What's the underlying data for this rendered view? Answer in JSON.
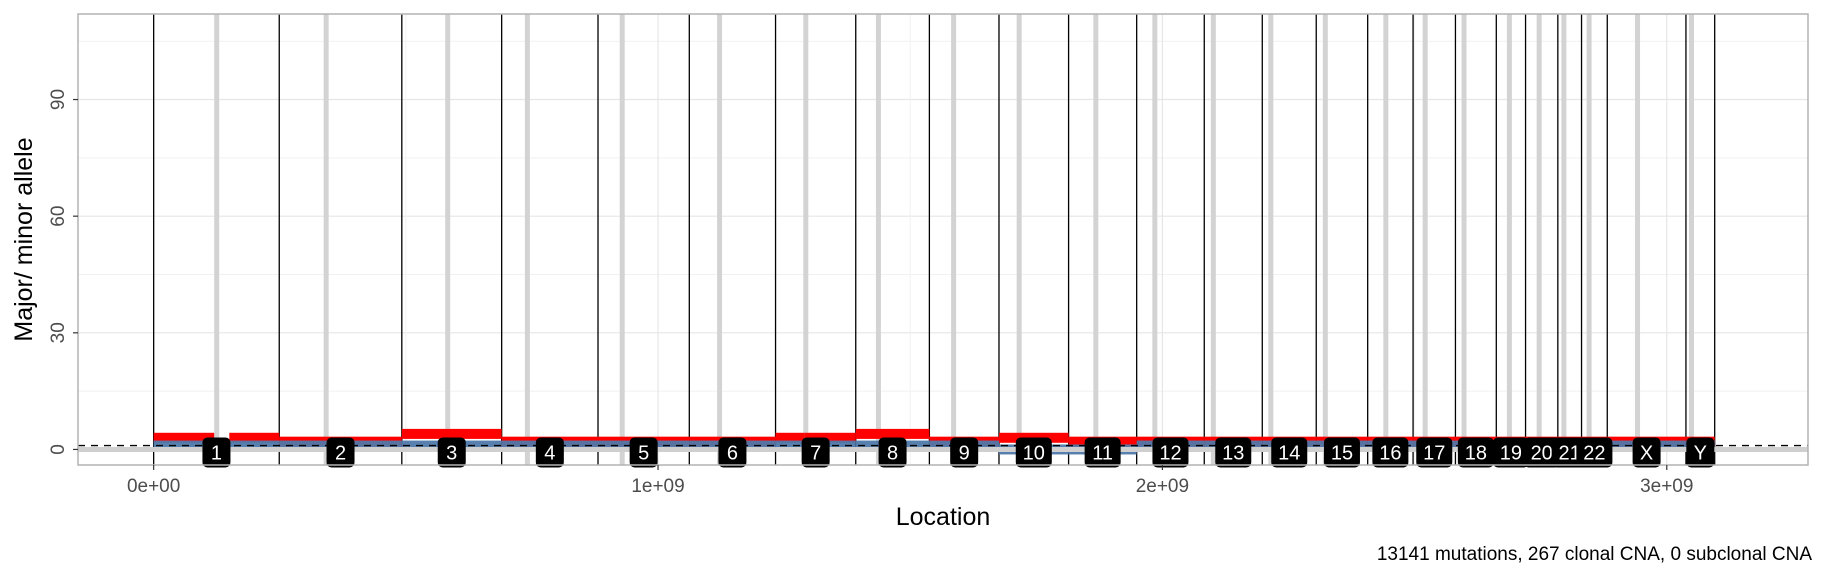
{
  "chart_data": {
    "type": "line",
    "xlabel": "Location",
    "ylabel": "Major/ minor allele",
    "caption": "13141 mutations, 267 clonal CNA, 0 subclonal CNA",
    "xlim": [
      -150000000,
      3280000000
    ],
    "ylim": [
      -4,
      112
    ],
    "x_ticks": [
      {
        "value": 0,
        "label": "0e+00"
      },
      {
        "value": 1000000000,
        "label": "1e+09"
      },
      {
        "value": 2000000000,
        "label": "2e+09"
      },
      {
        "value": 3000000000,
        "label": "3e+09"
      }
    ],
    "y_ticks": [
      {
        "value": 0,
        "label": "0"
      },
      {
        "value": 30,
        "label": "30"
      },
      {
        "value": 60,
        "label": "60"
      },
      {
        "value": 90,
        "label": "90"
      }
    ],
    "grid": true,
    "reference_line": {
      "y": 1,
      "style": "dashed"
    },
    "chromosomes": [
      {
        "label": "1",
        "start": 0,
        "end": 249000000
      },
      {
        "label": "2",
        "start": 249000000,
        "end": 492000000
      },
      {
        "label": "3",
        "start": 492000000,
        "end": 690000000
      },
      {
        "label": "4",
        "start": 690000000,
        "end": 881000000
      },
      {
        "label": "5",
        "start": 881000000,
        "end": 1062000000
      },
      {
        "label": "6",
        "start": 1062000000,
        "end": 1233000000
      },
      {
        "label": "7",
        "start": 1233000000,
        "end": 1392000000
      },
      {
        "label": "8",
        "start": 1392000000,
        "end": 1538000000
      },
      {
        "label": "9",
        "start": 1538000000,
        "end": 1676000000
      },
      {
        "label": "10",
        "start": 1676000000,
        "end": 1814000000
      },
      {
        "label": "11",
        "start": 1814000000,
        "end": 1949000000
      },
      {
        "label": "12",
        "start": 1949000000,
        "end": 2083000000
      },
      {
        "label": "13",
        "start": 2083000000,
        "end": 2198000000
      },
      {
        "label": "14",
        "start": 2198000000,
        "end": 2305000000
      },
      {
        "label": "15",
        "start": 2305000000,
        "end": 2407000000
      },
      {
        "label": "16",
        "start": 2407000000,
        "end": 2497000000
      },
      {
        "label": "17",
        "start": 2497000000,
        "end": 2581000000
      },
      {
        "label": "18",
        "start": 2581000000,
        "end": 2662000000
      },
      {
        "label": "19",
        "start": 2662000000,
        "end": 2720000000
      },
      {
        "label": "20",
        "start": 2720000000,
        "end": 2784000000
      },
      {
        "label": "21",
        "start": 2784000000,
        "end": 2831000000
      },
      {
        "label": "22",
        "start": 2831000000,
        "end": 2882000000
      },
      {
        "label": "X",
        "start": 2882000000,
        "end": 3038000000
      },
      {
        "label": "Y",
        "start": 3038000000,
        "end": 3095000000
      }
    ],
    "centromeres": [
      125000000,
      342000000,
      583000000,
      741000000,
      929000000,
      1122000000,
      1293000000,
      1437000000,
      1586000000,
      1716000000,
      1868000000,
      1985000000,
      2101000000,
      2215000000,
      2323000000,
      2443000000,
      2521000000,
      2598000000,
      2688000000,
      2747000000,
      2796000000,
      2846000000,
      2942000000,
      3049000000
    ],
    "series": [
      {
        "name": "major",
        "color": "#ff0000",
        "segments": [
          {
            "start": 0,
            "end": 120000000,
            "value": 3
          },
          {
            "start": 150000000,
            "end": 249000000,
            "value": 3
          },
          {
            "start": 249000000,
            "end": 492000000,
            "value": 2
          },
          {
            "start": 492000000,
            "end": 690000000,
            "value": 4
          },
          {
            "start": 690000000,
            "end": 881000000,
            "value": 2
          },
          {
            "start": 881000000,
            "end": 1062000000,
            "value": 2
          },
          {
            "start": 1062000000,
            "end": 1233000000,
            "value": 2
          },
          {
            "start": 1233000000,
            "end": 1290000000,
            "value": 3
          },
          {
            "start": 1290000000,
            "end": 1392000000,
            "value": 3
          },
          {
            "start": 1392000000,
            "end": 1538000000,
            "value": 4
          },
          {
            "start": 1538000000,
            "end": 1676000000,
            "value": 2
          },
          {
            "start": 1676000000,
            "end": 1814000000,
            "value": 3
          },
          {
            "start": 1814000000,
            "end": 1949000000,
            "value": 2
          },
          {
            "start": 1949000000,
            "end": 2083000000,
            "value": 2
          },
          {
            "start": 2083000000,
            "end": 2198000000,
            "value": 2
          },
          {
            "start": 2198000000,
            "end": 2305000000,
            "value": 2
          },
          {
            "start": 2305000000,
            "end": 2407000000,
            "value": 2
          },
          {
            "start": 2407000000,
            "end": 2497000000,
            "value": 2
          },
          {
            "start": 2497000000,
            "end": 2581000000,
            "value": 2
          },
          {
            "start": 2581000000,
            "end": 2662000000,
            "value": 2
          },
          {
            "start": 2662000000,
            "end": 2720000000,
            "value": 2
          },
          {
            "start": 2720000000,
            "end": 2784000000,
            "value": 2
          },
          {
            "start": 2784000000,
            "end": 2831000000,
            "value": 2
          },
          {
            "start": 2831000000,
            "end": 2882000000,
            "value": 2
          },
          {
            "start": 2882000000,
            "end": 3038000000,
            "value": 2
          },
          {
            "start": 3038000000,
            "end": 3095000000,
            "value": 2
          }
        ]
      },
      {
        "name": "minor",
        "color": "#4f79aa",
        "segments": [
          {
            "start": 0,
            "end": 249000000,
            "value": 1
          },
          {
            "start": 249000000,
            "end": 492000000,
            "value": 1
          },
          {
            "start": 492000000,
            "end": 690000000,
            "value": 1
          },
          {
            "start": 690000000,
            "end": 881000000,
            "value": 1
          },
          {
            "start": 881000000,
            "end": 1062000000,
            "value": 1
          },
          {
            "start": 1062000000,
            "end": 1233000000,
            "value": 1
          },
          {
            "start": 1233000000,
            "end": 1392000000,
            "value": 1
          },
          {
            "start": 1392000000,
            "end": 1538000000,
            "value": 1
          },
          {
            "start": 1538000000,
            "end": 1676000000,
            "value": 1
          },
          {
            "start": 1676000000,
            "end": 1814000000,
            "value": 0
          },
          {
            "start": 1814000000,
            "end": 1949000000,
            "value": 0
          },
          {
            "start": 1949000000,
            "end": 2083000000,
            "value": 1
          },
          {
            "start": 2083000000,
            "end": 2198000000,
            "value": 1
          },
          {
            "start": 2198000000,
            "end": 2305000000,
            "value": 1
          },
          {
            "start": 2305000000,
            "end": 2407000000,
            "value": 1
          },
          {
            "start": 2407000000,
            "end": 2497000000,
            "value": 1
          },
          {
            "start": 2497000000,
            "end": 2581000000,
            "value": 1
          },
          {
            "start": 2581000000,
            "end": 2662000000,
            "value": 1
          },
          {
            "start": 2662000000,
            "end": 2720000000,
            "value": 1
          },
          {
            "start": 2720000000,
            "end": 2784000000,
            "value": 1
          },
          {
            "start": 2784000000,
            "end": 2831000000,
            "value": 1
          },
          {
            "start": 2831000000,
            "end": 2882000000,
            "value": 1
          },
          {
            "start": 2882000000,
            "end": 3038000000,
            "value": 1
          },
          {
            "start": 3038000000,
            "end": 3095000000,
            "value": 1
          }
        ]
      }
    ]
  }
}
